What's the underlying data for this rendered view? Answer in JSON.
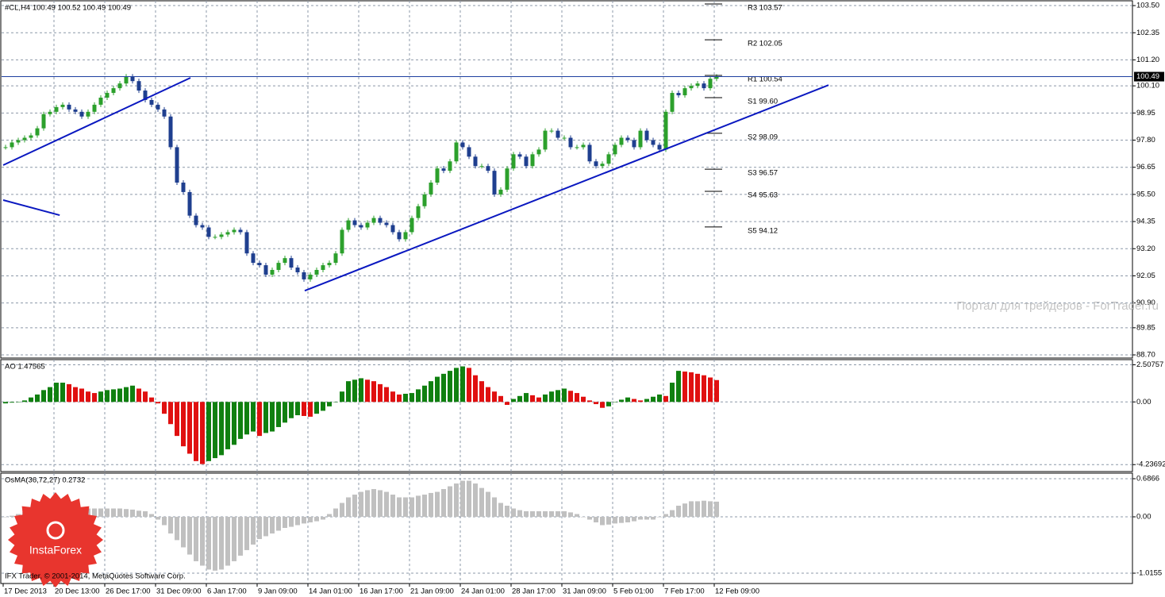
{
  "chart_data": [
    {
      "type": "candlestick",
      "title": "#CL,H4 100.49 100.52 100.49 100.49",
      "xtick_labels": [
        "17 Dec 2013",
        "20 Dec 13:00",
        "26 Dec 17:00",
        "31 Dec 09:00",
        "6 Jan 17:00",
        "9 Jan 09:00",
        "14 Jan 01:00",
        "16 Jan 17:00",
        "21 Jan 09:00",
        "24 Jan 01:00",
        "28 Jan 17:00",
        "31 Jan 09:00",
        "5 Feb 01:00",
        "7 Feb 17:00",
        "12 Feb 09:00"
      ],
      "values": [
        97.5,
        97.7,
        97.8,
        97.9,
        98.0,
        98.3,
        98.9,
        99.0,
        99.2,
        99.3,
        99.1,
        99.0,
        98.8,
        99.0,
        99.3,
        99.6,
        99.8,
        100.0,
        100.2,
        100.5,
        100.3,
        99.9,
        99.5,
        99.3,
        99.1,
        98.8,
        97.5,
        96.0,
        95.6,
        94.6,
        94.2,
        94.1,
        93.7,
        93.7,
        93.8,
        93.9,
        94.0,
        93.9,
        93.0,
        92.6,
        92.5,
        92.1,
        92.3,
        92.6,
        92.8,
        92.4,
        92.2,
        91.9,
        92.1,
        92.3,
        92.5,
        92.6,
        93.0,
        94.0,
        94.4,
        94.2,
        94.1,
        94.3,
        94.5,
        94.3,
        94.2,
        93.9,
        93.6,
        93.9,
        94.5,
        95.0,
        95.5,
        96.0,
        96.6,
        96.5,
        96.9,
        97.7,
        97.5,
        97.1,
        96.7,
        96.7,
        96.5,
        95.5,
        95.7,
        96.6,
        97.2,
        97.1,
        96.7,
        97.2,
        97.4,
        98.2,
        98.2,
        97.9,
        97.9,
        97.5,
        97.5,
        97.6,
        96.9,
        96.7,
        96.8,
        97.2,
        97.6,
        97.9,
        97.8,
        97.5,
        98.2,
        97.8,
        97.6,
        97.4,
        99.0,
        99.8,
        99.7,
        100.0,
        100.1,
        100.2,
        100.0,
        100.4,
        100.49
      ],
      "color_up": "#2ca02c",
      "color_down": "#1f3f8f",
      "ylim": [
        88.6,
        103.67
      ],
      "yticks": [
        {
          "value": 103.5,
          "label": "103.50"
        },
        102.35,
        {
          "value": 101.2,
          "label": "101.20"
        },
        {
          "value": 100.1,
          "label": "100.10"
        },
        98.95,
        {
          "value": 97.8,
          "label": "97.80"
        },
        96.65,
        {
          "value": 95.5,
          "label": "95.50"
        },
        94.35,
        {
          "value": 93.2,
          "label": "93.20"
        },
        92.05,
        {
          "value": 90.9,
          "label": "90.90"
        },
        89.85,
        {
          "value": 88.7,
          "label": "88.70"
        }
      ],
      "grid": true,
      "current_price": {
        "value": 100.49,
        "label": "100.49"
      },
      "levels": [
        {
          "label": "R3 103.57",
          "value": 103.57
        },
        {
          "label": "R2 102.05",
          "value": 102.05
        },
        {
          "label": "R1 100.54",
          "value": 100.54
        },
        {
          "label": "S1 99.60",
          "value": 99.6
        },
        {
          "label": "S2 98.09",
          "value": 98.09
        },
        {
          "label": "S3 96.57",
          "value": 96.57
        },
        {
          "label": "S4 95.63",
          "value": 95.63
        },
        {
          "label": "S5 94.12",
          "value": 94.12
        }
      ],
      "trendline_color": "#0a18c0",
      "trendlines": [
        {
          "from": [
            0,
            96.74
          ],
          "to": [
            29.5,
            100.44
          ]
        },
        {
          "from": [
            0,
            95.26
          ],
          "to": [
            8.9,
            94.62
          ]
        },
        {
          "from": [
            47.5,
            91.42
          ],
          "to": [
            130,
            100.13
          ]
        }
      ]
    },
    {
      "type": "bar",
      "title": "AO 1.47565",
      "values": [
        -0.1,
        -0.05,
        0.0,
        0.1,
        0.3,
        0.5,
        0.8,
        1.0,
        1.3,
        1.3,
        1.2,
        1.0,
        0.9,
        0.7,
        0.6,
        0.7,
        0.8,
        0.85,
        0.9,
        1.0,
        1.1,
        0.9,
        0.7,
        0.3,
        -0.1,
        -0.8,
        -1.5,
        -2.3,
        -3.0,
        -3.5,
        -4.0,
        -4.2,
        -4.0,
        -3.8,
        -3.6,
        -3.2,
        -2.9,
        -2.5,
        -2.2,
        -2.0,
        -2.3,
        -2.1,
        -2.0,
        -1.7,
        -1.4,
        -1.1,
        -0.9,
        -0.95,
        -1.0,
        -0.8,
        -0.6,
        -0.3,
        0.0,
        0.7,
        1.4,
        1.5,
        1.6,
        1.5,
        1.4,
        1.2,
        1.0,
        0.7,
        0.5,
        0.55,
        0.6,
        0.85,
        1.1,
        1.4,
        1.7,
        1.9,
        2.1,
        2.3,
        2.4,
        2.3,
        1.8,
        1.4,
        1.0,
        0.7,
        0.4,
        -0.2,
        0.2,
        0.4,
        0.6,
        0.45,
        0.3,
        0.5,
        0.7,
        0.8,
        0.9,
        0.75,
        0.6,
        0.35,
        0.1,
        -0.15,
        -0.4,
        -0.3,
        0.0,
        0.15,
        0.3,
        0.2,
        0.1,
        0.2,
        0.35,
        0.5,
        0.4,
        1.3,
        2.1,
        2.05,
        2.0,
        1.9,
        1.8,
        1.65,
        1.47565
      ],
      "color_up": "#108010",
      "color_down": "#e01010",
      "ylim": [
        -4.6,
        2.75
      ],
      "yticks": [
        2.50757,
        {
          "value": 0,
          "label": "0.00"
        },
        -4.23692
      ],
      "grid": true
    },
    {
      "type": "bar",
      "title": "OsMA(36,72,27) 0.2732",
      "values": [
        0.0,
        0.02,
        0.05,
        0.08,
        0.1,
        0.12,
        0.15,
        0.15,
        0.15,
        0.14,
        0.14,
        0.14,
        0.15,
        0.15,
        0.15,
        0.15,
        0.15,
        0.15,
        0.15,
        0.14,
        0.13,
        0.11,
        0.1,
        0.05,
        -0.05,
        -0.15,
        -0.3,
        -0.42,
        -0.55,
        -0.68,
        -0.8,
        -0.88,
        -0.95,
        -0.97,
        -0.95,
        -0.88,
        -0.8,
        -0.7,
        -0.6,
        -0.5,
        -0.4,
        -0.35,
        -0.3,
        -0.25,
        -0.2,
        -0.18,
        -0.15,
        -0.12,
        -0.1,
        -0.08,
        -0.05,
        0.05,
        0.15,
        0.25,
        0.35,
        0.4,
        0.45,
        0.48,
        0.5,
        0.48,
        0.45,
        0.4,
        0.35,
        0.35,
        0.35,
        0.38,
        0.4,
        0.43,
        0.45,
        0.5,
        0.55,
        0.6,
        0.65,
        0.65,
        0.6,
        0.52,
        0.45,
        0.35,
        0.25,
        0.2,
        0.15,
        0.12,
        0.1,
        0.1,
        0.1,
        0.1,
        0.1,
        0.1,
        0.1,
        0.08,
        0.05,
        0.0,
        -0.05,
        -0.1,
        -0.15,
        -0.14,
        -0.12,
        -0.11,
        -0.1,
        -0.08,
        -0.05,
        -0.05,
        -0.05,
        0.0,
        0.05,
        0.12,
        0.2,
        0.24,
        0.28,
        0.28,
        0.29,
        0.28,
        0.2732
      ],
      "color": "#c0c0c0",
      "ylim": [
        -1.173,
        0.758
      ],
      "yticks": [
        0.6866,
        {
          "value": 0,
          "label": "0.00"
        },
        -1.0155
      ],
      "grid": true
    }
  ],
  "watermark": "Портал для трейдеров - ForTrader.ru",
  "copyright": "IFX Trader, © 2001-2014, MetaQuotes Software Corp.",
  "logo": "InstaForex"
}
